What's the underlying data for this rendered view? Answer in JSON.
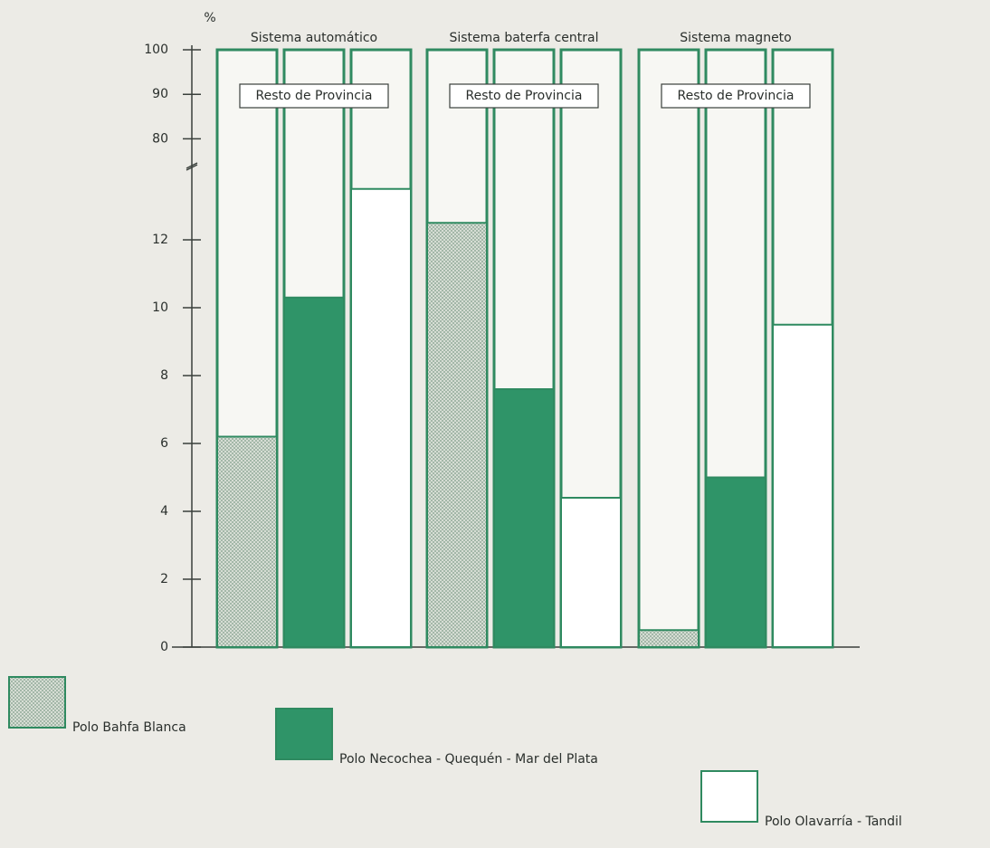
{
  "chart_data": {
    "type": "bar",
    "y_label": "%",
    "categories": [
      "Sistema automático",
      "Sistema baterfa central",
      "Sistema magneto"
    ],
    "category_notes": [
      "Resto de Provincia",
      "Resto de Provincia",
      "Resto de Provincia"
    ],
    "series": [
      {
        "name": "Polo Bahfa Blanca",
        "color": "#c9d3c6",
        "values": [
          6.2,
          12.5,
          0.5
        ]
      },
      {
        "name": "Polo Necochea - Quequén - Mar del Plata",
        "color": "#2f9468",
        "values": [
          10.3,
          7.6,
          5.0
        ]
      },
      {
        "name": "Polo Olavarría - Tandil",
        "color": "#ffffff",
        "values": [
          13.5,
          4.4,
          9.5
        ]
      }
    ],
    "ylim": [
      0,
      100
    ],
    "ybreak": [
      14,
      75
    ],
    "yticks": [
      0,
      2,
      4,
      6,
      8,
      10,
      12,
      80,
      90,
      100
    ]
  }
}
